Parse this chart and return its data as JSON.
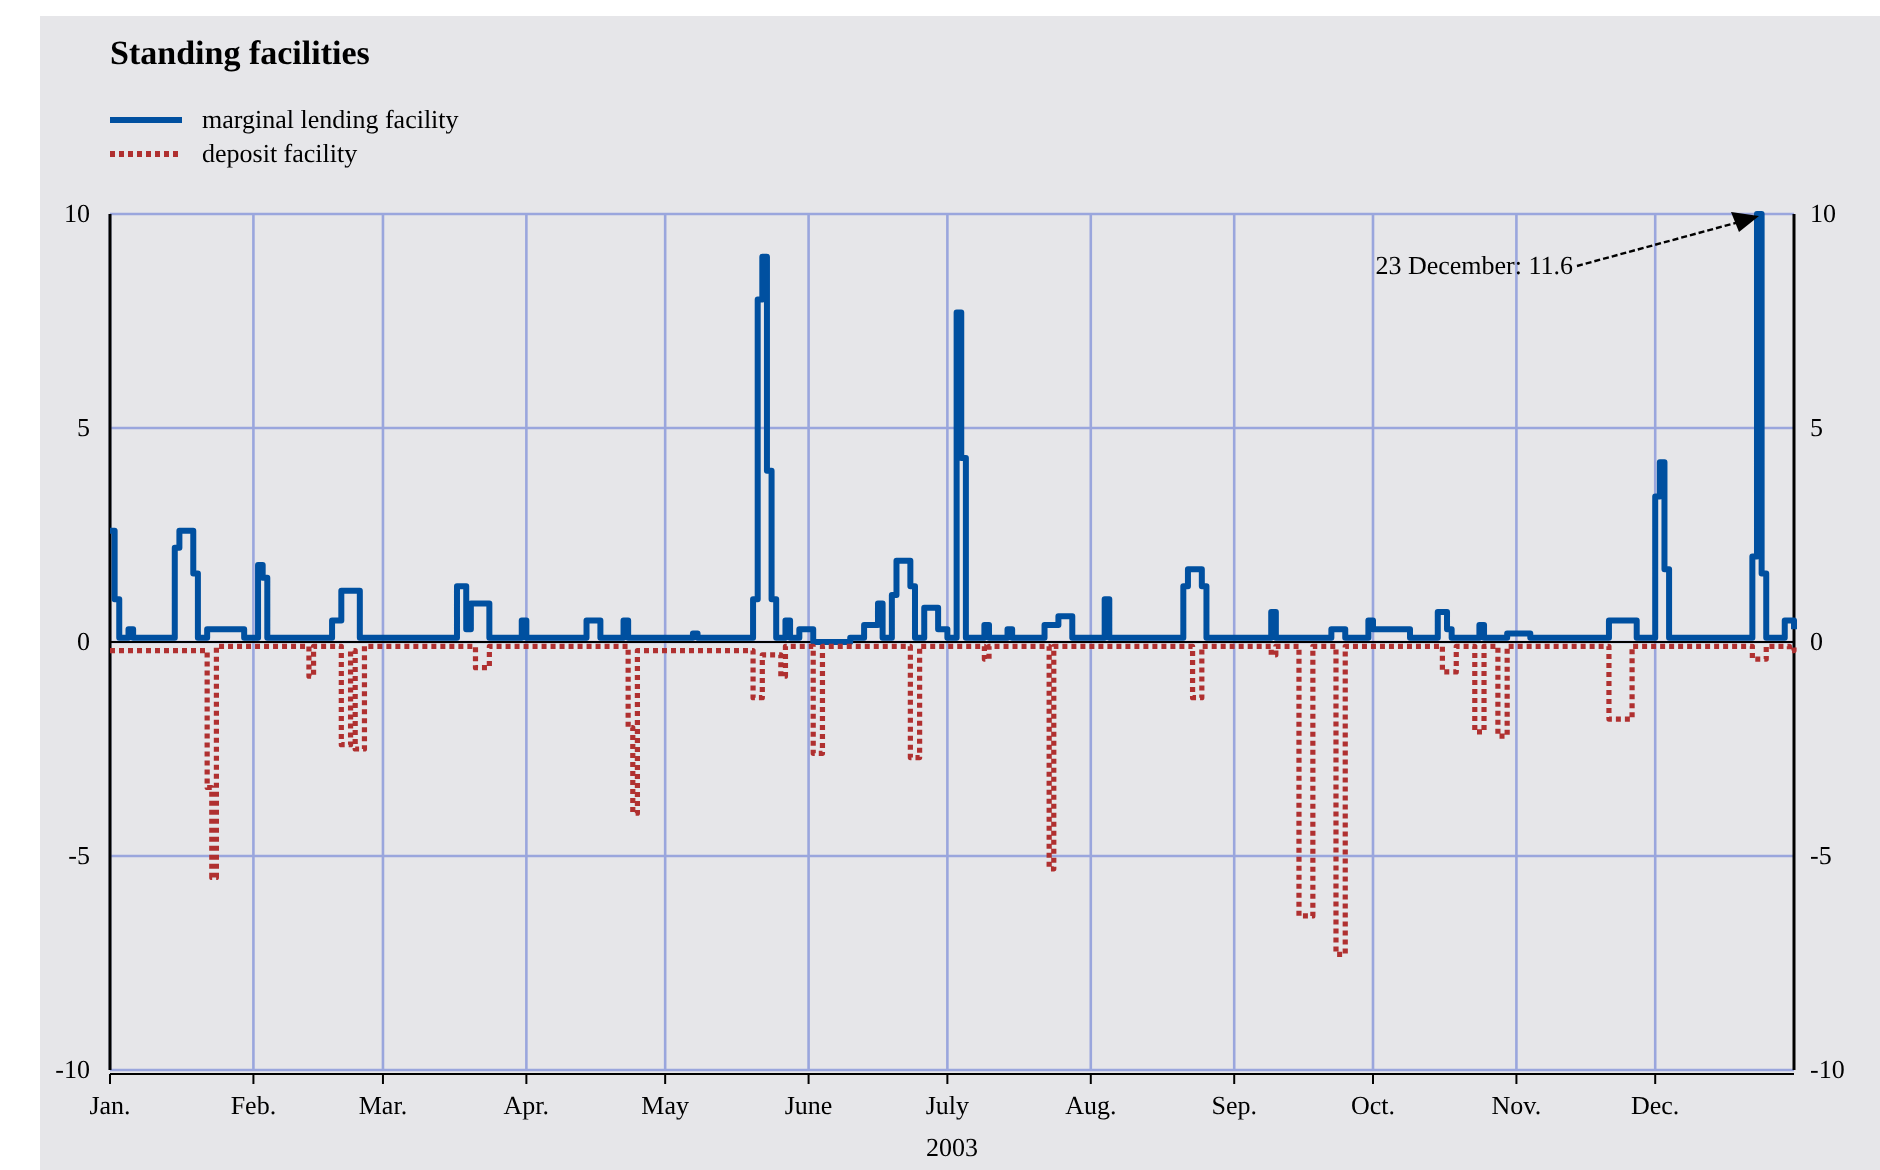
{
  "chart_data": {
    "type": "step",
    "title": "Standing facilities",
    "xlabel": "2003",
    "xlim": [
      "2003-01-01",
      "2003-12-31"
    ],
    "xticks": [
      {
        "value": "2003-01-01",
        "label": "Jan."
      },
      {
        "value": "2003-02-01",
        "label": "Feb."
      },
      {
        "value": "2003-03-01",
        "label": "Mar."
      },
      {
        "value": "2003-04-01",
        "label": "Apr."
      },
      {
        "value": "2003-05-01",
        "label": "May"
      },
      {
        "value": "2003-06-01",
        "label": "June"
      },
      {
        "value": "2003-07-01",
        "label": "July"
      },
      {
        "value": "2003-08-01",
        "label": "Aug."
      },
      {
        "value": "2003-09-01",
        "label": "Sep."
      },
      {
        "value": "2003-10-01",
        "label": "Oct."
      },
      {
        "value": "2003-11-01",
        "label": "Nov."
      },
      {
        "value": "2003-12-01",
        "label": "Dec."
      }
    ],
    "ylim": [
      -10,
      10
    ],
    "yticks": [
      -10,
      -5,
      0,
      5,
      10
    ],
    "y2lim": [
      -10,
      10
    ],
    "y2ticks": [
      -10,
      -5,
      0,
      5,
      10
    ],
    "grid": true,
    "legend": "top left",
    "ref_lines": [
      {
        "axis": "y",
        "value": 0,
        "color": "#000000"
      }
    ],
    "annotations": [
      "23 December: 11.6"
    ],
    "series": [
      {
        "name": "marginal lending facility",
        "color": "#0050a0",
        "line_style": "solid",
        "x": [
          "2003-01-01",
          "2003-01-02",
          "2003-01-03",
          "2003-01-05",
          "2003-01-06",
          "2003-01-15",
          "2003-01-16",
          "2003-01-19",
          "2003-01-20",
          "2003-01-22",
          "2003-01-30",
          "2003-02-02",
          "2003-02-03",
          "2003-02-04",
          "2003-02-18",
          "2003-02-20",
          "2003-02-24",
          "2003-03-17",
          "2003-03-19",
          "2003-03-20",
          "2003-03-24",
          "2003-03-31",
          "2003-04-01",
          "2003-04-14",
          "2003-04-17",
          "2003-04-22",
          "2003-04-23",
          "2003-05-07",
          "2003-05-08",
          "2003-05-20",
          "2003-05-21",
          "2003-05-22",
          "2003-05-23",
          "2003-05-24",
          "2003-05-25",
          "2003-05-27",
          "2003-05-28",
          "2003-05-30",
          "2003-06-02",
          "2003-06-10",
          "2003-06-13",
          "2003-06-16",
          "2003-06-17",
          "2003-06-19",
          "2003-06-20",
          "2003-06-23",
          "2003-06-24",
          "2003-06-26",
          "2003-06-29",
          "2003-07-01",
          "2003-07-03",
          "2003-07-04",
          "2003-07-05",
          "2003-07-09",
          "2003-07-10",
          "2003-07-14",
          "2003-07-15",
          "2003-07-22",
          "2003-07-25",
          "2003-07-28",
          "2003-08-04",
          "2003-08-05",
          "2003-08-21",
          "2003-08-22",
          "2003-08-25",
          "2003-08-26",
          "2003-09-09",
          "2003-09-10",
          "2003-09-22",
          "2003-09-25",
          "2003-09-30",
          "2003-10-01",
          "2003-10-09",
          "2003-10-15",
          "2003-10-17",
          "2003-10-18",
          "2003-10-24",
          "2003-10-25",
          "2003-10-30",
          "2003-11-04",
          "2003-11-21",
          "2003-11-27",
          "2003-12-01",
          "2003-12-02",
          "2003-12-03",
          "2003-12-04",
          "2003-12-22",
          "2003-12-23",
          "2003-12-24",
          "2003-12-25",
          "2003-12-29",
          "2003-12-31"
        ],
        "values": [
          2.6,
          1.0,
          0.1,
          0.3,
          0.1,
          2.2,
          2.6,
          1.6,
          0.1,
          0.3,
          0.1,
          1.8,
          1.5,
          0.1,
          0.5,
          1.2,
          0.1,
          1.3,
          0.3,
          0.9,
          0.1,
          0.5,
          0.1,
          0.5,
          0.1,
          0.5,
          0.1,
          0.2,
          0.1,
          1.0,
          8.0,
          9.0,
          4.0,
          1.0,
          0.1,
          0.5,
          0.1,
          0.3,
          0,
          0.1,
          0.4,
          0.9,
          0.1,
          1.1,
          1.9,
          1.3,
          0.1,
          0.8,
          0.3,
          0.1,
          7.7,
          4.3,
          0.1,
          0.4,
          0.1,
          0.3,
          0.1,
          0.4,
          0.6,
          0.1,
          1.0,
          0.1,
          1.3,
          1.7,
          1.3,
          0.1,
          0.7,
          0.1,
          0.3,
          0.1,
          0.5,
          0.3,
          0.1,
          0.7,
          0.3,
          0.1,
          0.4,
          0.1,
          0.2,
          0.1,
          0.5,
          0.1,
          3.4,
          4.2,
          1.7,
          0.1,
          2.0,
          10,
          1.6,
          0.1,
          0.5,
          0.3
        ]
      },
      {
        "name": "deposit facility",
        "color": "#b03030",
        "line_style": "dotted",
        "x": [
          "2003-01-01",
          "2003-01-21",
          "2003-01-22",
          "2003-01-23",
          "2003-01-24",
          "2003-02-12",
          "2003-02-13",
          "2003-02-14",
          "2003-02-20",
          "2003-02-22",
          "2003-02-23",
          "2003-02-25",
          "2003-03-21",
          "2003-03-24",
          "2003-04-23",
          "2003-04-24",
          "2003-04-25",
          "2003-05-20",
          "2003-05-22",
          "2003-05-26",
          "2003-05-27",
          "2003-06-02",
          "2003-06-04",
          "2003-06-23",
          "2003-06-25",
          "2003-07-09",
          "2003-07-10",
          "2003-07-23",
          "2003-07-24",
          "2003-08-23",
          "2003-08-25",
          "2003-09-09",
          "2003-09-10",
          "2003-09-15",
          "2003-09-18",
          "2003-09-23",
          "2003-09-25",
          "2003-10-16",
          "2003-10-19",
          "2003-10-23",
          "2003-10-25",
          "2003-10-28",
          "2003-10-30",
          "2003-11-21",
          "2003-11-26",
          "2003-12-22",
          "2003-12-25",
          "2003-12-30",
          "2003-12-31"
        ],
        "values": [
          -0.2,
          -0.2,
          -3.4,
          -5.5,
          -0.1,
          -0.1,
          -0.8,
          -0.1,
          -2.4,
          -0.2,
          -2.5,
          -0.1,
          -0.6,
          -0.1,
          -2.0,
          -4.0,
          -0.2,
          -1.3,
          -0.3,
          -0.8,
          -0.1,
          -2.6,
          -0.1,
          -2.7,
          -0.1,
          -0.4,
          -0.1,
          -5.3,
          -0.1,
          -1.3,
          -0.1,
          -0.3,
          -0.1,
          -6.4,
          -0.1,
          -7.3,
          -0.1,
          -0.7,
          -0.1,
          -2.1,
          -0.1,
          -2.2,
          -0.1,
          -1.8,
          -0.1,
          -0.4,
          -0.1,
          -0.2,
          -0.1
        ]
      }
    ]
  }
}
